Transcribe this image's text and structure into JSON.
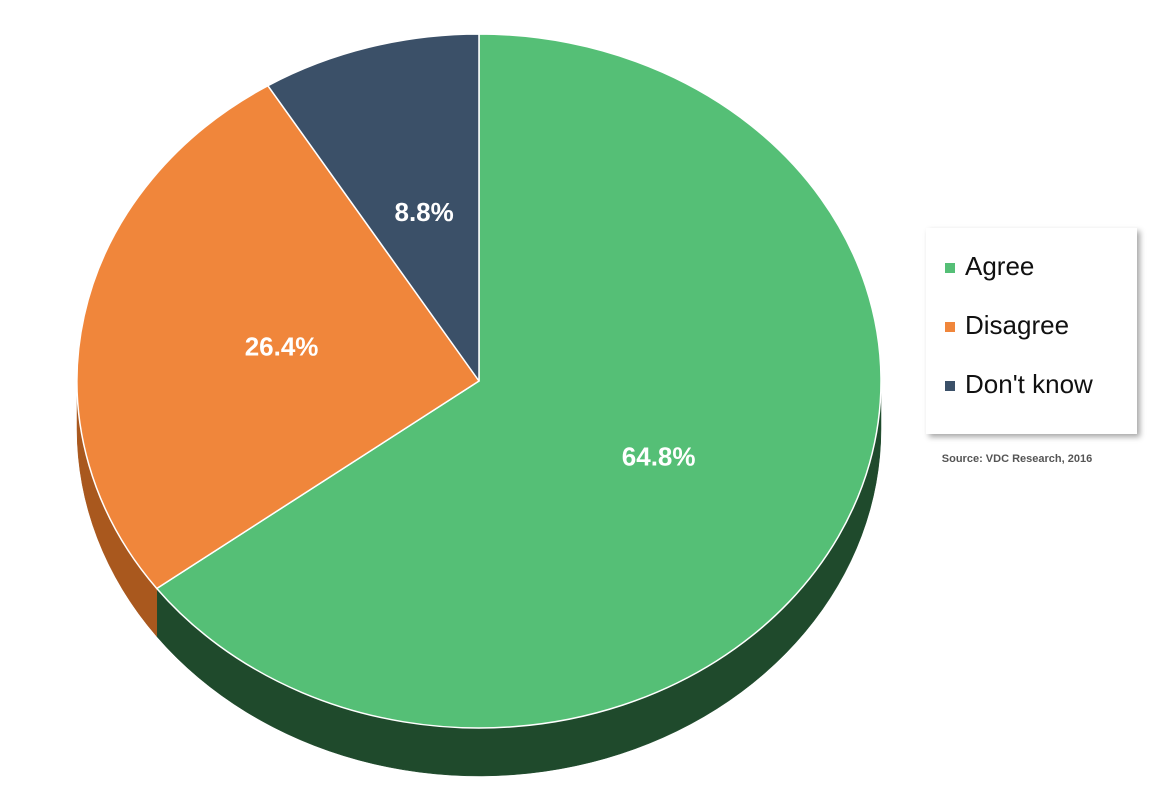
{
  "chart_data": {
    "type": "pie",
    "categories": [
      "Agree",
      "Disagree",
      "Don't know"
    ],
    "values": [
      64.8,
      26.4,
      8.8
    ],
    "value_labels": [
      "64.8%",
      "26.4%",
      "8.8%"
    ],
    "colors": [
      "#55bf76",
      "#f0863b",
      "#3b5068"
    ],
    "side_colors": [
      "#1f4a2c",
      "#a9581e",
      "#253446"
    ],
    "legend": "right",
    "source": "Source: VDC Research, 2016"
  }
}
